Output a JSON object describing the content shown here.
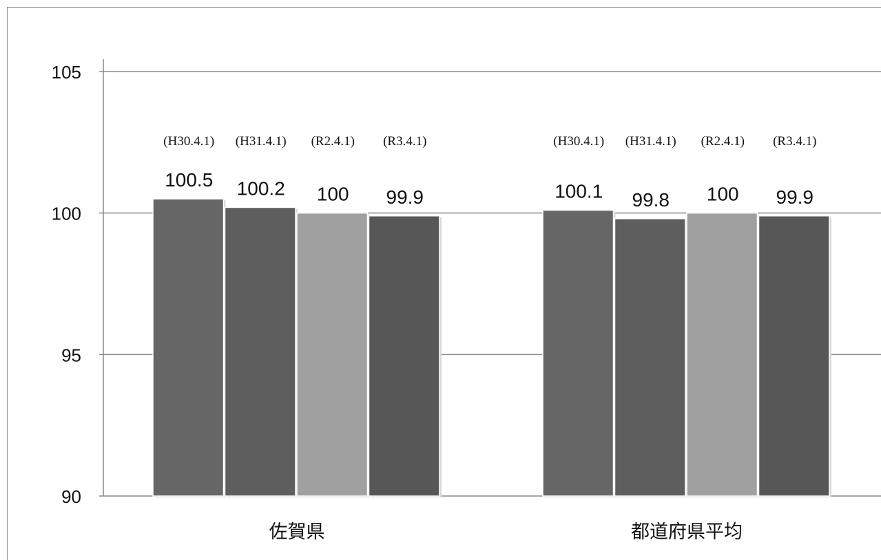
{
  "chart_data": {
    "type": "bar",
    "categories": [
      "佐賀県",
      "都道府県平均"
    ],
    "series_labels": [
      "(H30.4.1)",
      "(H31.4.1)",
      "(R2.4.1)",
      "(R3.4.1)"
    ],
    "series": [
      {
        "name": "(H30.4.1)",
        "values": [
          100.5,
          100.1
        ],
        "color": "#666666"
      },
      {
        "name": "(H31.4.1)",
        "values": [
          100.2,
          99.8
        ],
        "color": "#5e5e5e"
      },
      {
        "name": "(R2.4.1)",
        "values": [
          100,
          100
        ],
        "color": "#a0a0a0"
      },
      {
        "name": "(R3.4.1)",
        "values": [
          99.9,
          99.9
        ],
        "color": "#575757"
      }
    ],
    "ylim": [
      90,
      105
    ],
    "yticks": [
      90,
      95,
      100,
      105
    ],
    "grid": true,
    "title": "",
    "xlabel": "",
    "ylabel": ""
  }
}
